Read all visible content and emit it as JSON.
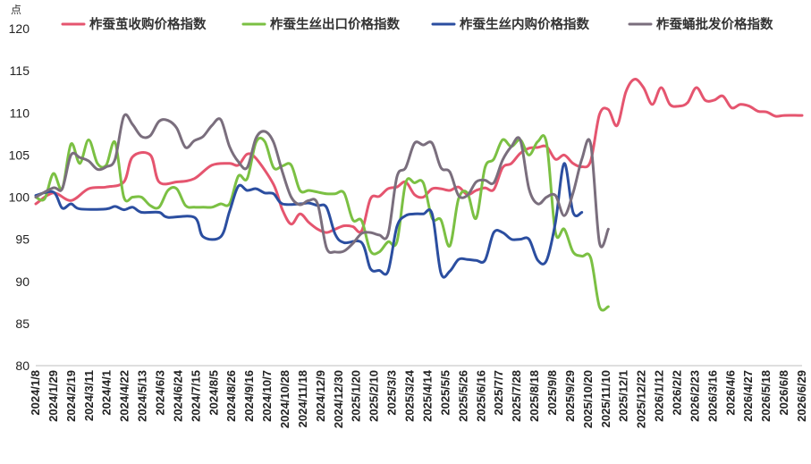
{
  "chart_data": {
    "type": "line",
    "ylabel": "点",
    "ylim": [
      80,
      120
    ],
    "yticks": [
      80,
      85,
      90,
      95,
      100,
      105,
      110,
      115,
      120
    ],
    "xlim": [
      "2024/1/8",
      "2026/6/29"
    ],
    "xticks": [
      "2024/1/8",
      "2024/1/29",
      "2024/2/19",
      "2024/3/11",
      "2024/4/1",
      "2024/4/22",
      "2024/5/13",
      "2024/6/3",
      "2024/6/24",
      "2024/7/15",
      "2024/8/5",
      "2024/8/26",
      "2024/9/16",
      "2024/10/7",
      "2024/10/28",
      "2024/11/18",
      "2024/12/9",
      "2024/12/30",
      "2025/1/20",
      "2025/2/10",
      "2025/3/3",
      "2025/3/24",
      "2025/4/14",
      "2025/5/5",
      "2025/5/26",
      "2025/6/16",
      "2025/7/7",
      "2025/7/28",
      "2025/8/18",
      "2025/9/8",
      "2025/9/29",
      "2025/10/20",
      "2025/11/10",
      "2025/12/1",
      "2025/12/22",
      "2026/1/12",
      "2026/2/2",
      "2026/2/23",
      "2026/3/16",
      "2026/4/6",
      "2026/4/27",
      "2026/5/18",
      "2026/6/8",
      "2026/6/29"
    ],
    "grid": false,
    "legend_position": "top",
    "series": [
      {
        "name": "柞蚕茧收购价格指数",
        "color": "#E5556F",
        "points": [
          [
            0,
            99.2
          ],
          [
            2,
            100.5
          ],
          [
            4,
            99.6
          ],
          [
            6,
            101
          ],
          [
            8,
            101.2
          ],
          [
            10,
            101.8
          ],
          [
            11,
            104.8
          ],
          [
            13,
            105
          ],
          [
            14,
            101.8
          ],
          [
            16,
            101.8
          ],
          [
            18,
            102.2
          ],
          [
            20,
            103.8
          ],
          [
            22,
            104
          ],
          [
            23,
            103.8
          ],
          [
            24,
            105.1
          ],
          [
            25,
            104.6
          ],
          [
            27,
            101.5
          ],
          [
            28,
            98.5
          ],
          [
            29,
            96.8
          ],
          [
            30,
            98
          ],
          [
            31,
            97
          ],
          [
            32,
            96.2
          ],
          [
            33,
            95.8
          ],
          [
            34,
            96.2
          ],
          [
            35,
            96.6
          ],
          [
            36,
            96.5
          ],
          [
            37,
            96
          ],
          [
            38,
            99.8
          ],
          [
            39,
            100.1
          ],
          [
            40,
            101
          ],
          [
            41,
            101.2
          ],
          [
            42,
            101.8
          ],
          [
            43,
            100.3
          ],
          [
            44,
            100
          ],
          [
            45,
            101
          ],
          [
            46,
            101
          ],
          [
            47,
            100.8
          ],
          [
            48,
            101.2
          ],
          [
            49,
            100.3
          ],
          [
            50,
            100.8
          ],
          [
            51,
            101.1
          ],
          [
            52,
            100.9
          ],
          [
            53,
            103.5
          ],
          [
            54,
            104
          ],
          [
            55,
            105.2
          ],
          [
            56,
            105.8
          ],
          [
            57,
            105.9
          ],
          [
            58,
            106
          ],
          [
            59,
            104.5
          ],
          [
            60,
            105
          ],
          [
            61,
            104
          ],
          [
            62,
            103.6
          ],
          [
            63,
            104.3
          ],
          [
            64,
            109.8
          ],
          [
            65,
            110.4
          ],
          [
            66,
            108.5
          ],
          [
            67,
            112.5
          ],
          [
            68,
            114
          ],
          [
            69,
            113
          ],
          [
            70,
            111
          ],
          [
            71,
            113
          ],
          [
            72,
            111
          ],
          [
            73,
            110.8
          ],
          [
            74,
            111.2
          ],
          [
            75,
            113
          ],
          [
            76,
            111.5
          ],
          [
            77,
            111.5
          ],
          [
            78,
            112
          ],
          [
            79,
            110.6
          ],
          [
            80,
            111
          ],
          [
            81,
            110.8
          ],
          [
            82,
            110.2
          ],
          [
            83,
            110.1
          ],
          [
            84,
            109.6
          ],
          [
            85,
            109.7
          ],
          [
            87,
            109.7
          ]
        ]
      },
      {
        "name": "柞蚕生丝出口价格指数",
        "color": "#7BC043",
        "points": [
          [
            0,
            100
          ],
          [
            1,
            99.8
          ],
          [
            2,
            102.8
          ],
          [
            3,
            101
          ],
          [
            4,
            106.3
          ],
          [
            5,
            104
          ],
          [
            6,
            106.8
          ],
          [
            7,
            104
          ],
          [
            8,
            103.8
          ],
          [
            9,
            106.5
          ],
          [
            10,
            100
          ],
          [
            11,
            100
          ],
          [
            12,
            100
          ],
          [
            13,
            99
          ],
          [
            14,
            98.8
          ],
          [
            15,
            100.8
          ],
          [
            16,
            101
          ],
          [
            17,
            99
          ],
          [
            18,
            98.8
          ],
          [
            19,
            98.8
          ],
          [
            20,
            98.8
          ],
          [
            21,
            99.2
          ],
          [
            22,
            99.2
          ],
          [
            23,
            102.5
          ],
          [
            24,
            102.2
          ],
          [
            25,
            106.5
          ],
          [
            26,
            106.6
          ],
          [
            27,
            103.5
          ],
          [
            28,
            103.7
          ],
          [
            29,
            103.8
          ],
          [
            30,
            100.8
          ],
          [
            31,
            100.8
          ],
          [
            32,
            100.6
          ],
          [
            33,
            100.4
          ],
          [
            34,
            100.4
          ],
          [
            35,
            100.5
          ],
          [
            36,
            97.3
          ],
          [
            37,
            97.2
          ],
          [
            38,
            93.6
          ],
          [
            39,
            93.5
          ],
          [
            40,
            94.7
          ],
          [
            41,
            94.7
          ],
          [
            42,
            101.7
          ],
          [
            43,
            101.7
          ],
          [
            44,
            101.7
          ],
          [
            45,
            97.5
          ],
          [
            46,
            97.3
          ],
          [
            47,
            94.2
          ],
          [
            48,
            99.8
          ],
          [
            49,
            100.5
          ],
          [
            50,
            97.5
          ],
          [
            51,
            103.5
          ],
          [
            52,
            104.5
          ],
          [
            53,
            106.8
          ],
          [
            54,
            106
          ],
          [
            55,
            106.8
          ],
          [
            56,
            105
          ],
          [
            57,
            106.6
          ],
          [
            58,
            106.4
          ],
          [
            59,
            95.8
          ],
          [
            60,
            96.2
          ],
          [
            61,
            93.5
          ],
          [
            62,
            93
          ],
          [
            63,
            92.8
          ],
          [
            64,
            87
          ],
          [
            65,
            87
          ]
        ]
      },
      {
        "name": "柞蚕生丝内购价格指数",
        "color": "#2B4EA0",
        "points": [
          [
            0,
            100.2
          ],
          [
            2,
            100.6
          ],
          [
            3,
            98.7
          ],
          [
            4,
            99.2
          ],
          [
            5,
            98.6
          ],
          [
            8,
            98.6
          ],
          [
            9,
            98.9
          ],
          [
            10,
            98.5
          ],
          [
            11,
            98.8
          ],
          [
            12,
            98.2
          ],
          [
            14,
            98.2
          ],
          [
            15,
            97.6
          ],
          [
            18,
            97.6
          ],
          [
            19,
            95.3
          ],
          [
            21,
            95.3
          ],
          [
            22,
            98.3
          ],
          [
            23,
            101.3
          ],
          [
            24,
            100.8
          ],
          [
            25,
            101
          ],
          [
            26,
            100.5
          ],
          [
            27,
            100.4
          ],
          [
            28,
            99.2
          ],
          [
            30,
            99.2
          ],
          [
            31,
            99.3
          ],
          [
            32,
            99
          ],
          [
            33,
            98.8
          ],
          [
            34,
            95.6
          ],
          [
            35,
            94.6
          ],
          [
            37,
            94.6
          ],
          [
            38,
            91.5
          ],
          [
            39,
            91.3
          ],
          [
            40,
            91.2
          ],
          [
            41,
            96.5
          ],
          [
            42,
            97.8
          ],
          [
            43,
            98
          ],
          [
            44,
            98
          ],
          [
            45,
            98
          ],
          [
            46,
            91
          ],
          [
            47,
            91.2
          ],
          [
            48,
            92.6
          ],
          [
            49,
            92.6
          ],
          [
            50,
            92.5
          ],
          [
            51,
            92.5
          ],
          [
            52,
            95.8
          ],
          [
            53,
            95.8
          ],
          [
            54,
            95
          ],
          [
            55,
            95
          ],
          [
            56,
            95
          ],
          [
            57,
            92.5
          ],
          [
            58,
            92.5
          ],
          [
            59,
            97
          ],
          [
            60,
            104
          ],
          [
            61,
            98.2
          ],
          [
            62,
            98.2
          ]
        ]
      },
      {
        "name": "柞蚕蛹批发价格指数",
        "color": "#7A6E7D",
        "points": [
          [
            0,
            100
          ],
          [
            2,
            101.1
          ],
          [
            3,
            101
          ],
          [
            4,
            105
          ],
          [
            5,
            104.7
          ],
          [
            6,
            104.3
          ],
          [
            7,
            103.3
          ],
          [
            8,
            103.6
          ],
          [
            9,
            104.5
          ],
          [
            10,
            109.6
          ],
          [
            11,
            108.6
          ],
          [
            12,
            107.2
          ],
          [
            13,
            107.3
          ],
          [
            14,
            109
          ],
          [
            15,
            109.1
          ],
          [
            16,
            108.2
          ],
          [
            17,
            105.9
          ],
          [
            18,
            106.7
          ],
          [
            19,
            107.2
          ],
          [
            20,
            108.5
          ],
          [
            21,
            109.2
          ],
          [
            22,
            106
          ],
          [
            23,
            104.2
          ],
          [
            24,
            103.5
          ],
          [
            25,
            107
          ],
          [
            26,
            107.8
          ],
          [
            27,
            106.5
          ],
          [
            28,
            103
          ],
          [
            29,
            100
          ],
          [
            30,
            99.1
          ],
          [
            31,
            99.6
          ],
          [
            32,
            99.2
          ],
          [
            33,
            94
          ],
          [
            34,
            93.5
          ],
          [
            35,
            93.6
          ],
          [
            36,
            94.5
          ],
          [
            37,
            95.7
          ],
          [
            38,
            95.8
          ],
          [
            39,
            95.5
          ],
          [
            40,
            95.6
          ],
          [
            41,
            102.4
          ],
          [
            42,
            103.5
          ],
          [
            43,
            106.4
          ],
          [
            44,
            106.2
          ],
          [
            45,
            106.4
          ],
          [
            46,
            103.5
          ],
          [
            47,
            103
          ],
          [
            48,
            100.2
          ],
          [
            49,
            100.2
          ],
          [
            50,
            101.8
          ],
          [
            51,
            102
          ],
          [
            52,
            101.7
          ],
          [
            53,
            104.4
          ],
          [
            54,
            106
          ],
          [
            55,
            106.8
          ],
          [
            56,
            101
          ],
          [
            57,
            99.2
          ],
          [
            58,
            100
          ],
          [
            59,
            100.2
          ],
          [
            60,
            97.8
          ],
          [
            61,
            100.5
          ],
          [
            62,
            104.5
          ],
          [
            63,
            106.3
          ],
          [
            64,
            94.6
          ],
          [
            65,
            96.2
          ]
        ]
      }
    ]
  }
}
